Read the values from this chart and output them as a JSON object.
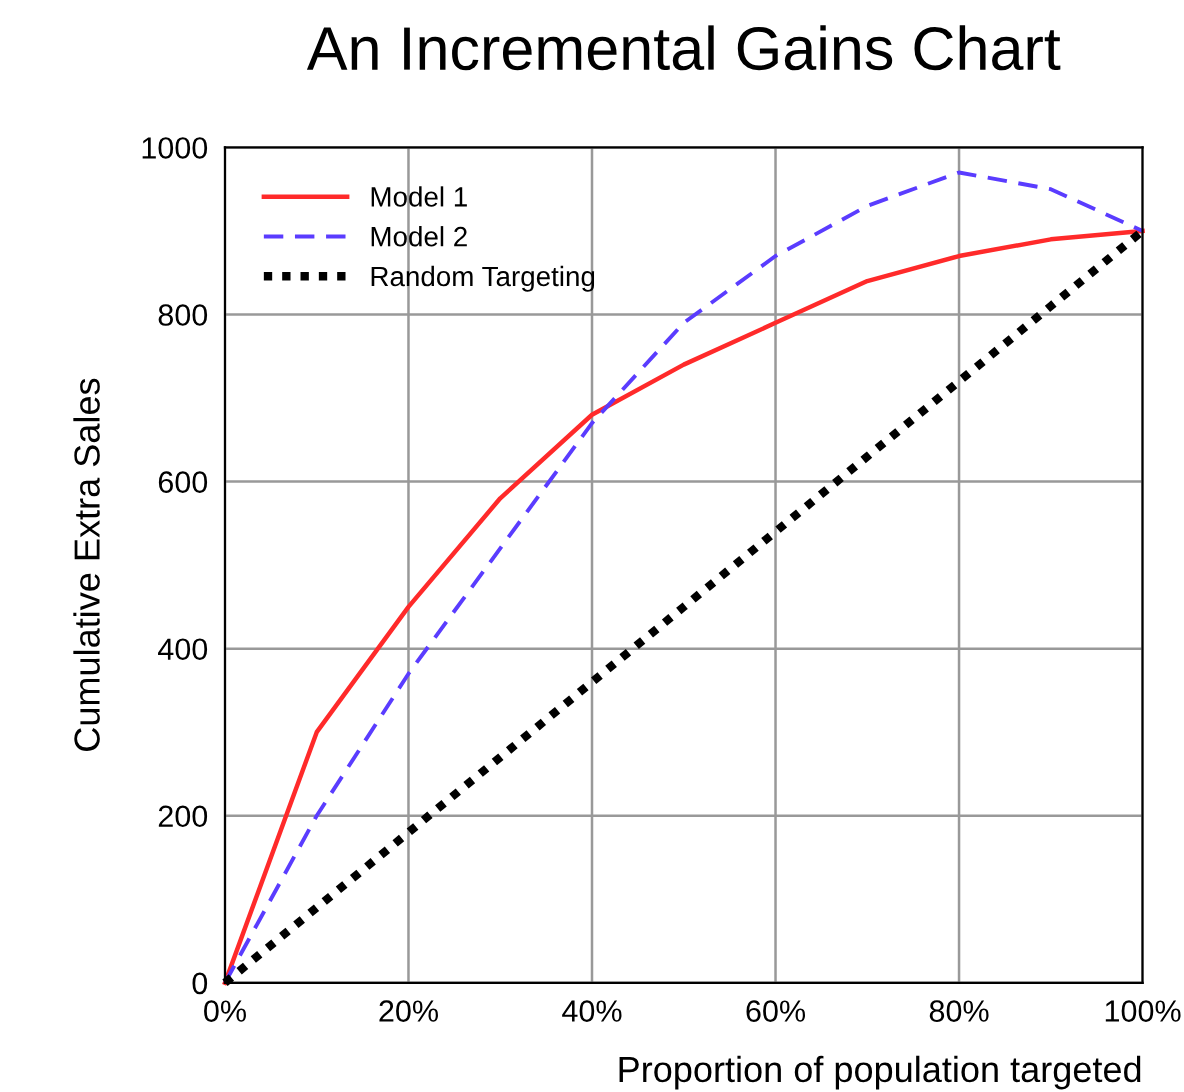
{
  "chart_data": {
    "type": "line",
    "title": "An Incremental Gains Chart",
    "xlabel": "Proportion of population targeted",
    "ylabel": "Cumulative Extra Sales",
    "x": [
      0,
      10,
      20,
      30,
      40,
      50,
      60,
      70,
      80,
      90,
      100
    ],
    "series": [
      {
        "name": "Model 1",
        "color": "#ff2a2a",
        "line_style": "solid",
        "values": [
          0,
          300,
          450,
          580,
          680,
          740,
          790,
          840,
          870,
          890,
          900
        ]
      },
      {
        "name": "Model 2",
        "color": "#5a3cff",
        "line_style": "dashed",
        "values": [
          0,
          200,
          370,
          520,
          670,
          790,
          870,
          930,
          970,
          950,
          900
        ]
      },
      {
        "name": "Random Targeting",
        "color": "#000000",
        "line_style": "dotted",
        "values": [
          0,
          90,
          180,
          270,
          360,
          450,
          540,
          630,
          720,
          810,
          900
        ]
      }
    ],
    "xlim": [
      0,
      100
    ],
    "xticks": [
      {
        "value": 0,
        "label": "0%"
      },
      {
        "value": 20,
        "label": "20%"
      },
      {
        "value": 40,
        "label": "40%"
      },
      {
        "value": 60,
        "label": "60%"
      },
      {
        "value": 80,
        "label": "80%"
      },
      {
        "value": 100,
        "label": "100%"
      }
    ],
    "ylim": [
      0,
      1000
    ],
    "yticks": [
      0,
      200,
      400,
      600,
      800,
      1000
    ],
    "grid": true,
    "legend": "top left",
    "marker": "none"
  }
}
